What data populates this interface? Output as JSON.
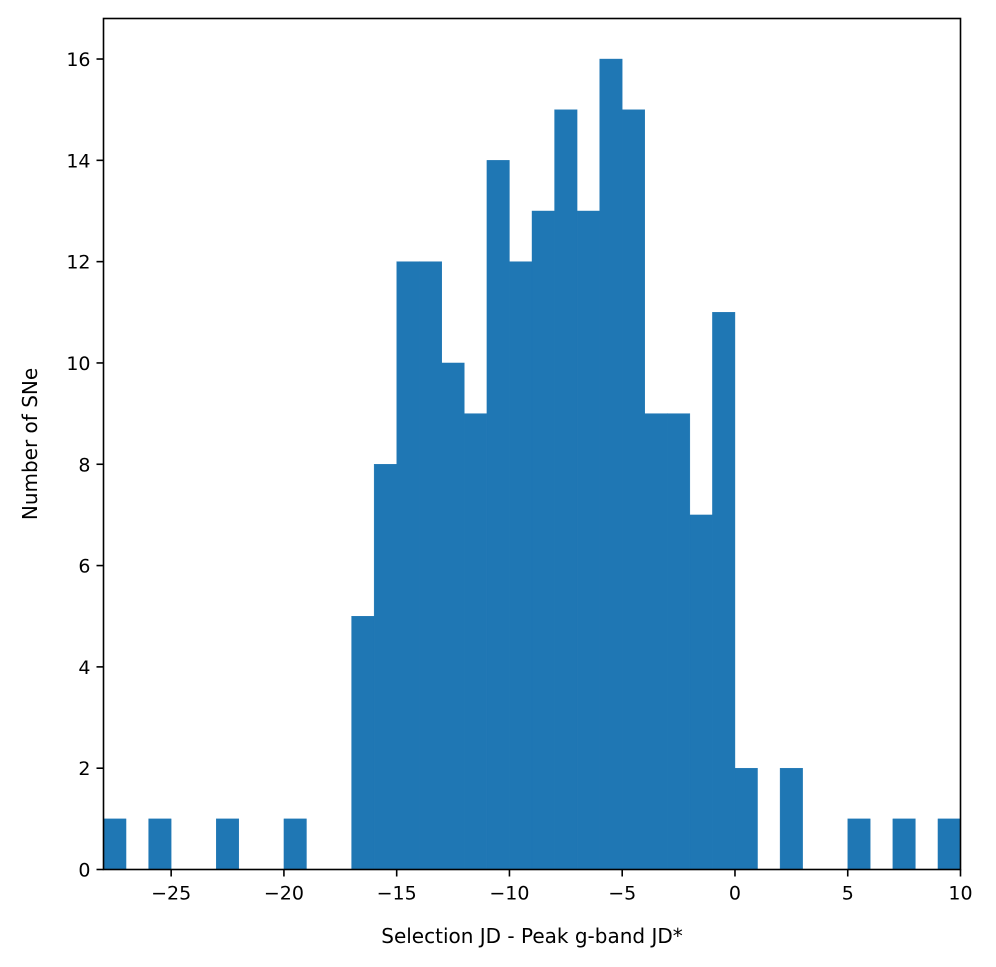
{
  "chart_data": {
    "type": "bar",
    "xlabel": "Selection JD - Peak g-band JD*",
    "ylabel": "Number of SNe",
    "xlim": [
      -28,
      10
    ],
    "ylim": [
      0,
      16.8
    ],
    "xticks": [
      -25,
      -20,
      -15,
      -10,
      -5,
      0,
      5,
      10
    ],
    "yticks": [
      0,
      2,
      4,
      6,
      8,
      10,
      12,
      14,
      16
    ],
    "bin_width": 1,
    "bar_color": "#1f77b4",
    "grid": false,
    "bins": [
      {
        "x0": -28,
        "x1": -27,
        "count": 1
      },
      {
        "x0": -26,
        "x1": -25,
        "count": 1
      },
      {
        "x0": -23,
        "x1": -22,
        "count": 1
      },
      {
        "x0": -20,
        "x1": -19,
        "count": 1
      },
      {
        "x0": -17,
        "x1": -16,
        "count": 5
      },
      {
        "x0": -16,
        "x1": -15,
        "count": 8
      },
      {
        "x0": -15,
        "x1": -14,
        "count": 12
      },
      {
        "x0": -14,
        "x1": -13,
        "count": 12
      },
      {
        "x0": -13,
        "x1": -12,
        "count": 10
      },
      {
        "x0": -12,
        "x1": -11,
        "count": 9
      },
      {
        "x0": -11,
        "x1": -10,
        "count": 14
      },
      {
        "x0": -10,
        "x1": -9,
        "count": 12
      },
      {
        "x0": -9,
        "x1": -8,
        "count": 13
      },
      {
        "x0": -8,
        "x1": -7,
        "count": 15
      },
      {
        "x0": -7,
        "x1": -6,
        "count": 13
      },
      {
        "x0": -6,
        "x1": -5,
        "count": 16
      },
      {
        "x0": -5,
        "x1": -4,
        "count": 15
      },
      {
        "x0": -4,
        "x1": -3,
        "count": 9
      },
      {
        "x0": -3,
        "x1": -2,
        "count": 9
      },
      {
        "x0": -2,
        "x1": -1,
        "count": 7
      },
      {
        "x0": -1,
        "x1": 0,
        "count": 11
      },
      {
        "x0": 0,
        "x1": 1,
        "count": 2
      },
      {
        "x0": 2,
        "x1": 3,
        "count": 2
      },
      {
        "x0": 5,
        "x1": 6,
        "count": 1
      },
      {
        "x0": 7,
        "x1": 8,
        "count": 1
      },
      {
        "x0": 9,
        "x1": 10,
        "count": 1
      }
    ]
  }
}
